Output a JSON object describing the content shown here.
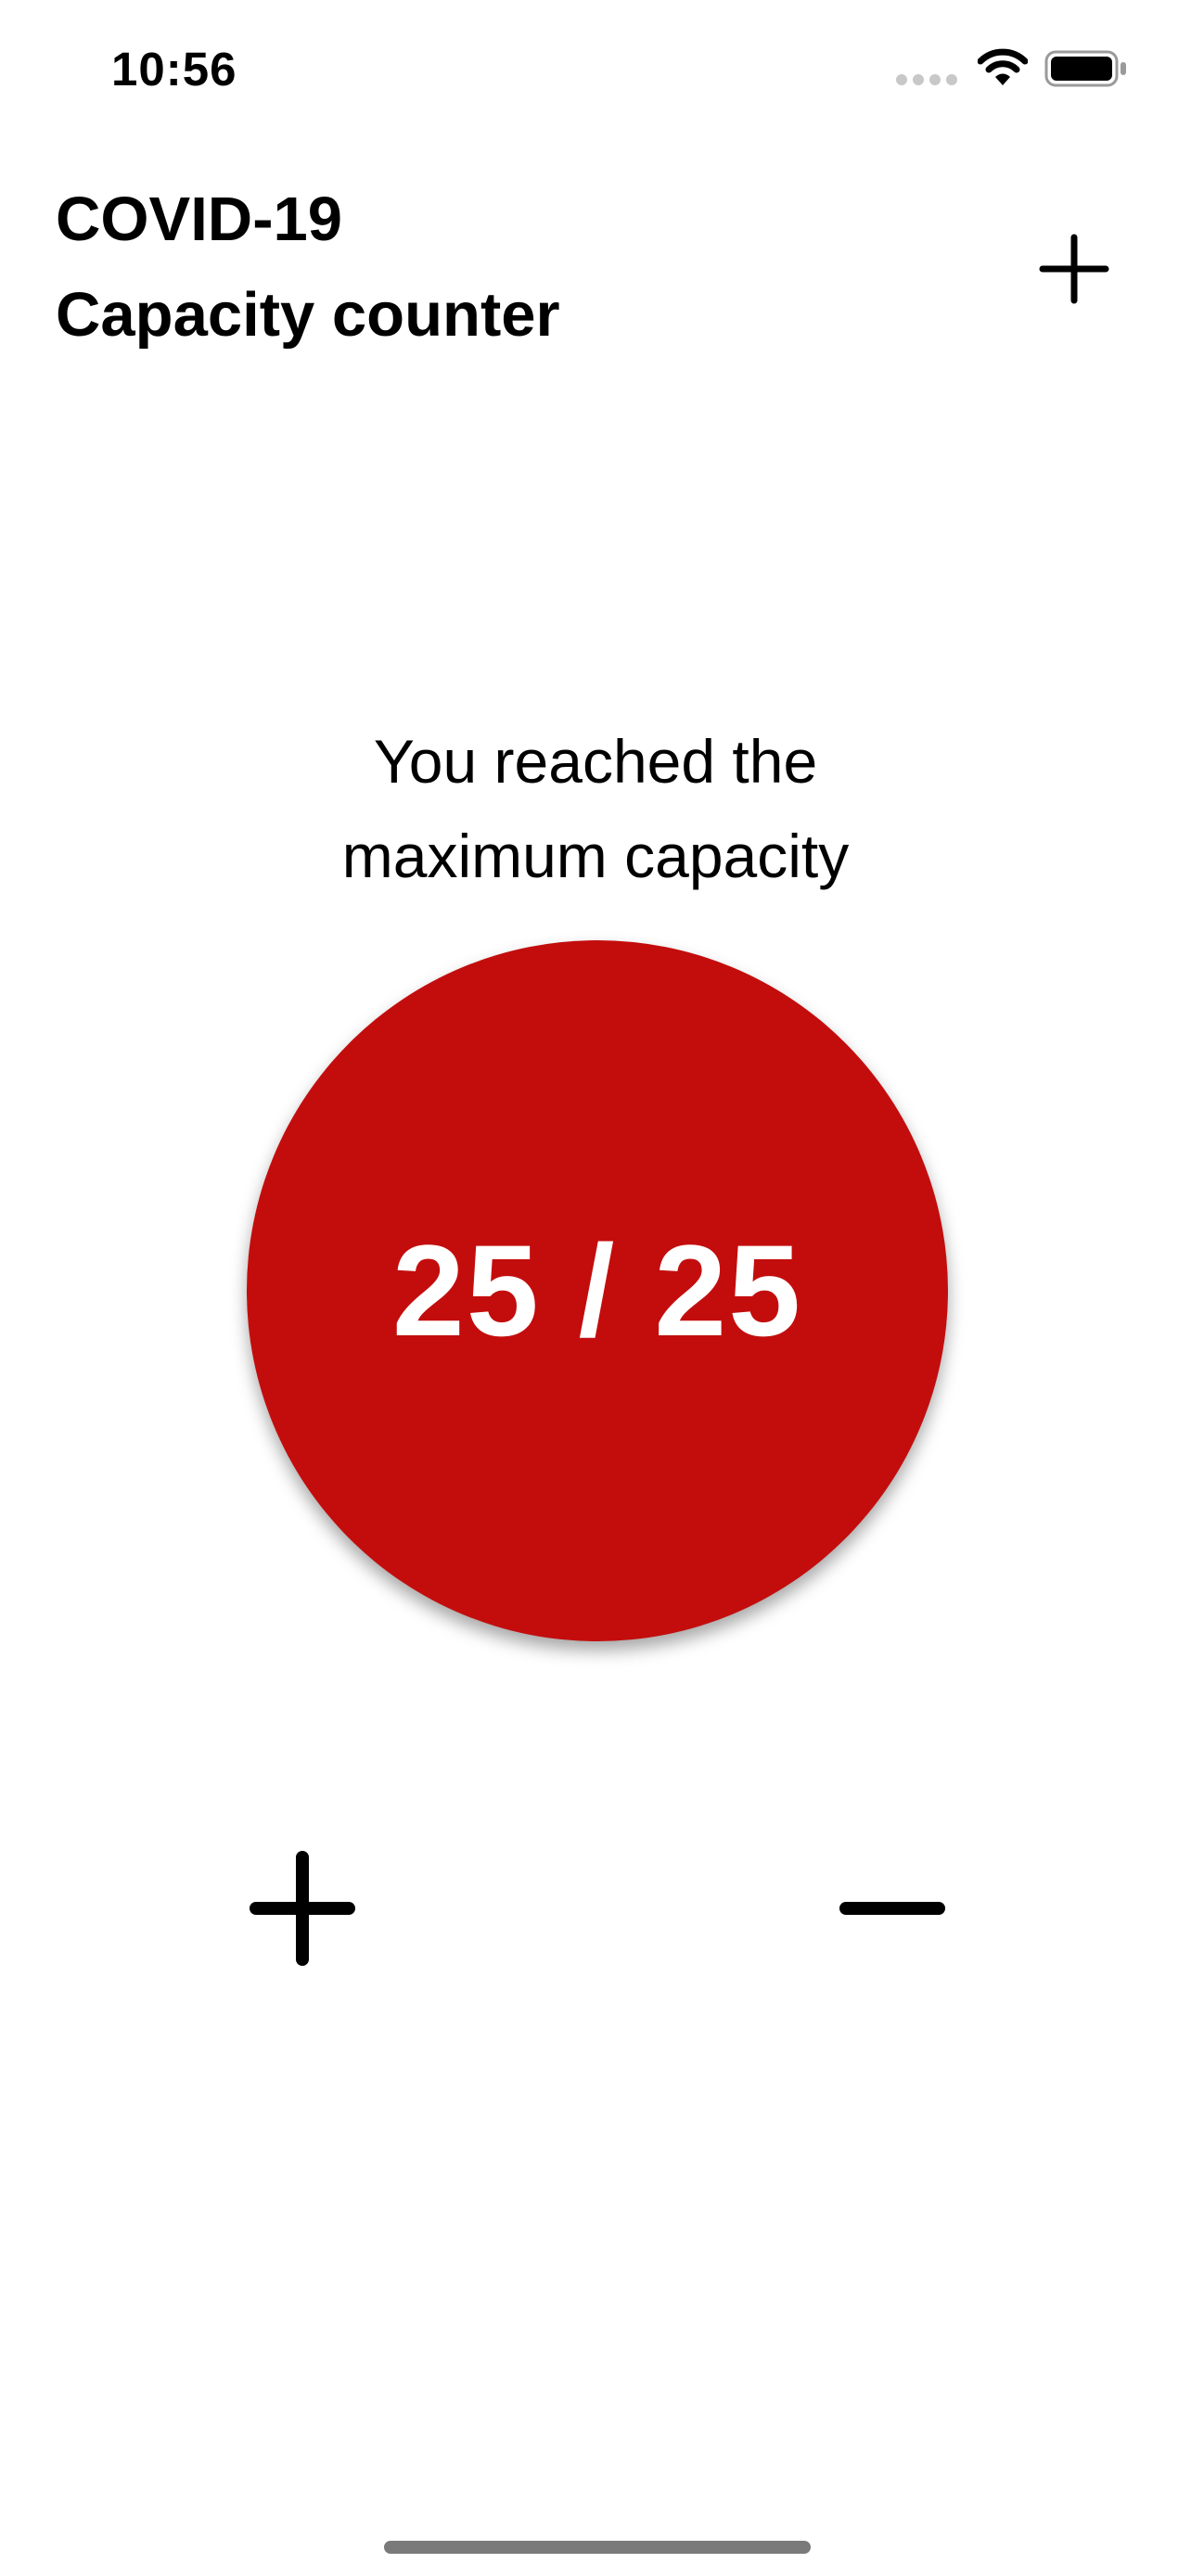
{
  "status_bar": {
    "time": "10:56",
    "icons": [
      "cellular-signal-icon",
      "wifi-icon",
      "battery-icon"
    ]
  },
  "header": {
    "title_line1": "COVID-19",
    "title_line2": "Capacity counter",
    "add_button_icon": "plus-icon"
  },
  "message": {
    "line1": "You reached the",
    "line2": "maximum capacity"
  },
  "counter": {
    "current": 25,
    "max": 25,
    "display": "25 / 25",
    "color": "#c30d0d"
  },
  "controls": {
    "increment_icon": "plus-icon",
    "decrement_icon": "minus-icon"
  }
}
